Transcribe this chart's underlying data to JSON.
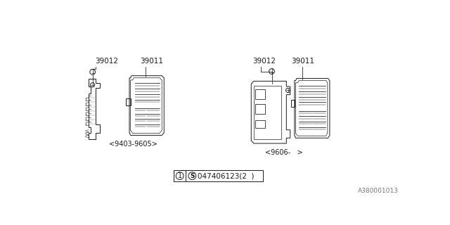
{
  "bg_color": "#ffffff",
  "line_color": "#1a1a1a",
  "part_labels_left": [
    "39012",
    "39011"
  ],
  "part_labels_right": [
    "39012",
    "39011"
  ],
  "date_left": "<9403-9605>",
  "date_right": "<9606-   >",
  "watermark": "A380001013",
  "lw": 0.7,
  "label_fontsize": 7.5,
  "date_fontsize": 7.0
}
